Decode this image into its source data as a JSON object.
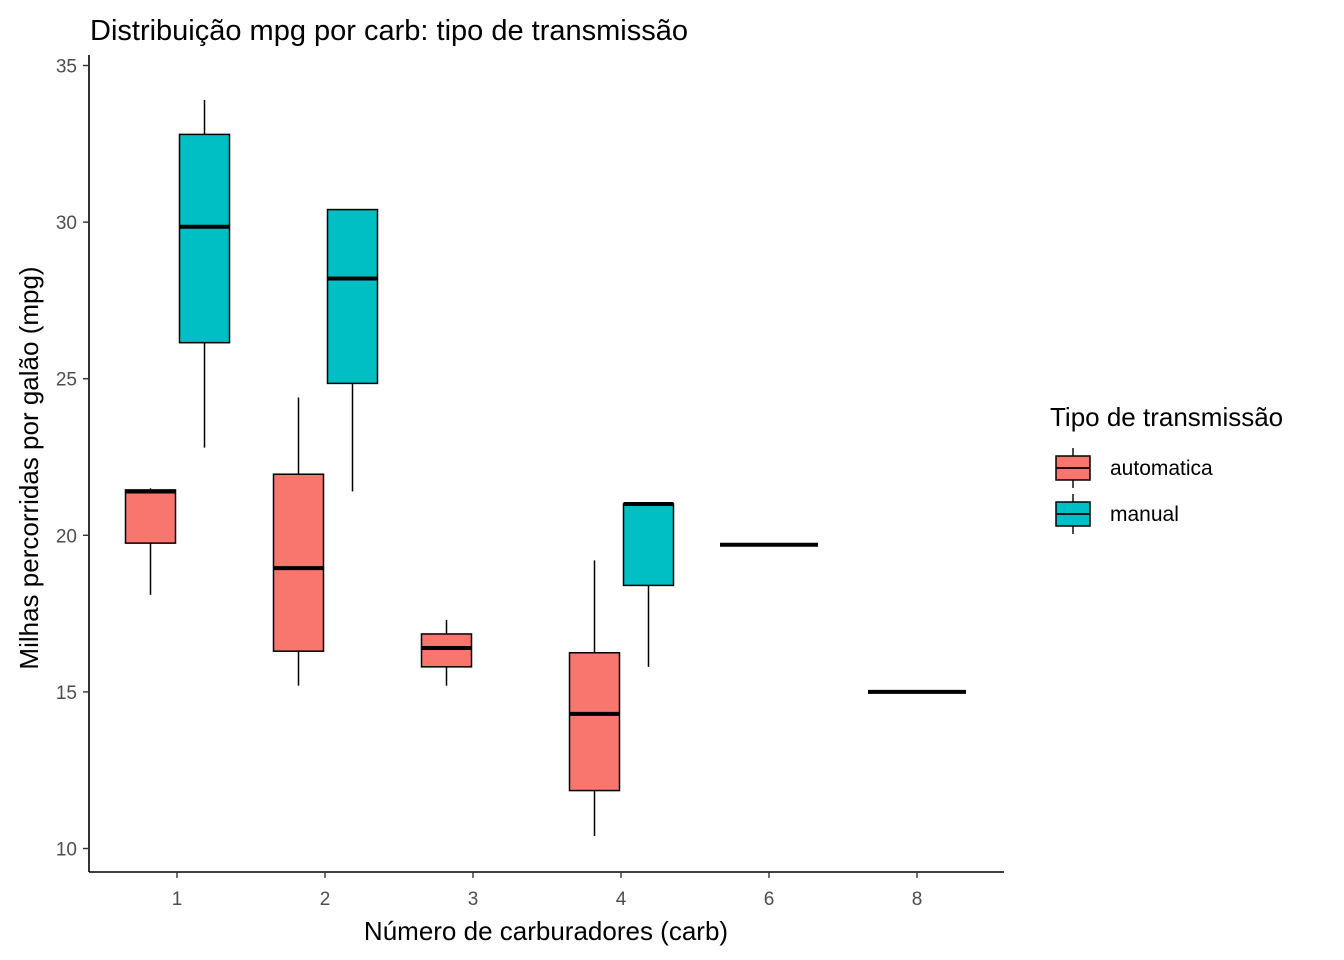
{
  "chart_data": {
    "type": "boxplot",
    "title": "Distribuição mpg por carb: tipo de transmissão",
    "xlabel": "Número de carburadores (carb)",
    "ylabel": "Milhas percorridas por galão (mpg)",
    "ylim": [
      10,
      35
    ],
    "yticks": [
      10,
      15,
      20,
      25,
      30,
      35
    ],
    "categories": [
      "1",
      "2",
      "3",
      "4",
      "6",
      "8"
    ],
    "grid": false,
    "legend": {
      "title": "Tipo de transmissão",
      "position": "right"
    },
    "series": [
      {
        "name": "automatica",
        "color": "#F8766D",
        "boxes": [
          {
            "category": "1",
            "min": 18.1,
            "q1": 19.75,
            "median": 21.4,
            "q3": 21.45,
            "max": 21.5
          },
          {
            "category": "2",
            "min": 15.2,
            "q1": 16.3,
            "median": 18.95,
            "q3": 21.95,
            "max": 24.4
          },
          {
            "category": "3",
            "min": 15.2,
            "q1": 15.8,
            "median": 16.4,
            "q3": 16.85,
            "max": 17.3
          },
          {
            "category": "4",
            "min": 10.4,
            "q1": 11.85,
            "median": 14.3,
            "q3": 16.25,
            "max": 19.2
          },
          {
            "category": "8",
            "min": 15.0,
            "q1": 15.0,
            "median": 15.0,
            "q3": 15.0,
            "max": 15.0,
            "full_width": true
          }
        ]
      },
      {
        "name": "manual",
        "color": "#00BFC4",
        "boxes": [
          {
            "category": "1",
            "min": 22.8,
            "q1": 26.15,
            "median": 29.85,
            "q3": 32.8,
            "max": 33.9
          },
          {
            "category": "2",
            "min": 21.4,
            "q1": 24.85,
            "median": 28.2,
            "q3": 30.4,
            "max": 30.4
          },
          {
            "category": "4",
            "min": 15.8,
            "q1": 18.4,
            "median": 21.0,
            "q3": 21.0,
            "max": 21.0
          },
          {
            "category": "6",
            "min": 19.7,
            "q1": 19.7,
            "median": 19.7,
            "q3": 19.7,
            "max": 19.7,
            "full_width": true
          }
        ]
      }
    ]
  }
}
